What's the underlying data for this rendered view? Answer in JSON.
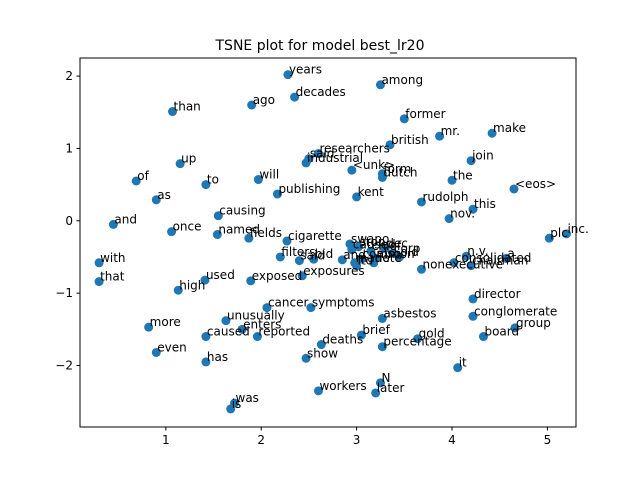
{
  "chart_data": {
    "type": "scatter",
    "title": "TSNE plot for model best_lr20",
    "xlabel": "",
    "ylabel": "",
    "xlim": [
      0.1,
      5.3
    ],
    "ylim": [
      -2.85,
      2.25
    ],
    "xticks": [
      1,
      2,
      3,
      4,
      5
    ],
    "yticks": [
      2,
      1,
      0,
      -1,
      -2
    ],
    "grid": false,
    "legend": "none",
    "marker_color": "#1f77b4",
    "points": [
      {
        "x": 2.28,
        "y": 2.02,
        "label": "years"
      },
      {
        "x": 3.25,
        "y": 1.88,
        "label": "among"
      },
      {
        "x": 2.35,
        "y": 1.71,
        "label": "decades"
      },
      {
        "x": 1.9,
        "y": 1.6,
        "label": "ago"
      },
      {
        "x": 1.07,
        "y": 1.51,
        "label": "than"
      },
      {
        "x": 3.5,
        "y": 1.41,
        "label": "former"
      },
      {
        "x": 4.42,
        "y": 1.21,
        "label": "make"
      },
      {
        "x": 3.87,
        "y": 1.17,
        "label": "mr."
      },
      {
        "x": 3.35,
        "y": 1.05,
        "label": "british"
      },
      {
        "x": 2.6,
        "y": 0.93,
        "label": "researchers"
      },
      {
        "x": 2.5,
        "y": 0.86,
        "label": "said"
      },
      {
        "x": 2.47,
        "y": 0.8,
        "label": "industrial"
      },
      {
        "x": 1.15,
        "y": 0.79,
        "label": "up"
      },
      {
        "x": 4.2,
        "y": 0.83,
        "label": "join"
      },
      {
        "x": 2.95,
        "y": 0.7,
        "label": "<unk>"
      },
      {
        "x": 3.27,
        "y": 0.65,
        "label": "form"
      },
      {
        "x": 3.27,
        "y": 0.6,
        "label": "dutch"
      },
      {
        "x": 4.0,
        "y": 0.56,
        "label": "the"
      },
      {
        "x": 1.97,
        "y": 0.57,
        "label": "will"
      },
      {
        "x": 0.69,
        "y": 0.55,
        "label": "of"
      },
      {
        "x": 1.42,
        "y": 0.5,
        "label": "to"
      },
      {
        "x": 4.65,
        "y": 0.44,
        "label": "<eos>"
      },
      {
        "x": 2.17,
        "y": 0.37,
        "label": "publishing"
      },
      {
        "x": 3.0,
        "y": 0.33,
        "label": "kent"
      },
      {
        "x": 0.9,
        "y": 0.29,
        "label": "as"
      },
      {
        "x": 3.68,
        "y": 0.26,
        "label": "rudolph"
      },
      {
        "x": 4.22,
        "y": 0.16,
        "label": "this"
      },
      {
        "x": 3.97,
        "y": 0.03,
        "label": "nov."
      },
      {
        "x": 1.55,
        "y": 0.07,
        "label": "causing"
      },
      {
        "x": 0.45,
        "y": -0.05,
        "label": "and"
      },
      {
        "x": 1.06,
        "y": -0.15,
        "label": "once"
      },
      {
        "x": 1.54,
        "y": -0.19,
        "label": "named"
      },
      {
        "x": 1.87,
        "y": -0.24,
        "label": "fields"
      },
      {
        "x": 5.2,
        "y": -0.18,
        "label": "inc."
      },
      {
        "x": 5.02,
        "y": -0.24,
        "label": "plc"
      },
      {
        "x": 2.27,
        "y": -0.28,
        "label": "cigarette"
      },
      {
        "x": 2.93,
        "y": -0.32,
        "label": "swapo"
      },
      {
        "x": 3.02,
        "y": -0.36,
        "label": "stop"
      },
      {
        "x": 2.95,
        "y": -0.4,
        "label": "caused"
      },
      {
        "x": 3.3,
        "y": -0.38,
        "label": "dec"
      },
      {
        "x": 3.15,
        "y": -0.42,
        "label": "chief"
      },
      {
        "x": 3.38,
        "y": -0.45,
        "label": "corp"
      },
      {
        "x": 4.15,
        "y": -0.49,
        "label": "n.v."
      },
      {
        "x": 4.57,
        "y": -0.52,
        "label": "a"
      },
      {
        "x": 2.2,
        "y": -0.5,
        "label": "filters"
      },
      {
        "x": 2.4,
        "y": -0.55,
        "label": "said"
      },
      {
        "x": 2.55,
        "y": -0.53,
        "label": "bid"
      },
      {
        "x": 2.85,
        "y": -0.54,
        "label": "and"
      },
      {
        "x": 3.05,
        "y": -0.53,
        "label": "common"
      },
      {
        "x": 3.2,
        "y": -0.52,
        "label": "also"
      },
      {
        "x": 3.45,
        "y": -0.5,
        "label": "old"
      },
      {
        "x": 2.98,
        "y": -0.58,
        "label": "made"
      },
      {
        "x": 3.18,
        "y": -0.58,
        "label": "note"
      },
      {
        "x": 3.0,
        "y": -0.62,
        "label": "ltd"
      },
      {
        "x": 4.02,
        "y": -0.58,
        "label": "consolidated"
      },
      {
        "x": 4.2,
        "y": -0.62,
        "label": "chairman"
      },
      {
        "x": 3.68,
        "y": -0.67,
        "label": "nonexecutive"
      },
      {
        "x": 2.43,
        "y": -0.76,
        "label": "exposures"
      },
      {
        "x": 0.3,
        "y": -0.58,
        "label": "with"
      },
      {
        "x": 1.41,
        "y": -0.82,
        "label": "used"
      },
      {
        "x": 1.89,
        "y": -0.83,
        "label": "exposed"
      },
      {
        "x": 0.3,
        "y": -0.84,
        "label": "that"
      },
      {
        "x": 1.13,
        "y": -0.96,
        "label": "high"
      },
      {
        "x": 4.22,
        "y": -1.08,
        "label": "director"
      },
      {
        "x": 2.06,
        "y": -1.2,
        "label": "cancer"
      },
      {
        "x": 2.52,
        "y": -1.2,
        "label": "symptoms"
      },
      {
        "x": 3.27,
        "y": -1.35,
        "label": "asbestos"
      },
      {
        "x": 4.22,
        "y": -1.32,
        "label": "conglomerate"
      },
      {
        "x": 1.63,
        "y": -1.38,
        "label": "unusually"
      },
      {
        "x": 0.82,
        "y": -1.47,
        "label": "more"
      },
      {
        "x": 1.8,
        "y": -1.5,
        "label": "enters"
      },
      {
        "x": 4.66,
        "y": -1.48,
        "label": "group"
      },
      {
        "x": 1.42,
        "y": -1.6,
        "label": "caused"
      },
      {
        "x": 1.96,
        "y": -1.6,
        "label": "reported"
      },
      {
        "x": 3.05,
        "y": -1.58,
        "label": "brief"
      },
      {
        "x": 4.33,
        "y": -1.6,
        "label": "board"
      },
      {
        "x": 3.64,
        "y": -1.63,
        "label": "gold"
      },
      {
        "x": 2.63,
        "y": -1.71,
        "label": "deaths"
      },
      {
        "x": 3.27,
        "y": -1.74,
        "label": "percentage"
      },
      {
        "x": 0.9,
        "y": -1.82,
        "label": "even"
      },
      {
        "x": 2.47,
        "y": -1.9,
        "label": "show"
      },
      {
        "x": 1.42,
        "y": -1.95,
        "label": "has"
      },
      {
        "x": 4.06,
        "y": -2.03,
        "label": "it"
      },
      {
        "x": 3.25,
        "y": -2.24,
        "label": "N"
      },
      {
        "x": 2.6,
        "y": -2.35,
        "label": "workers"
      },
      {
        "x": 3.2,
        "y": -2.38,
        "label": "later"
      },
      {
        "x": 1.72,
        "y": -2.52,
        "label": "was"
      },
      {
        "x": 1.68,
        "y": -2.6,
        "label": "is"
      }
    ]
  }
}
